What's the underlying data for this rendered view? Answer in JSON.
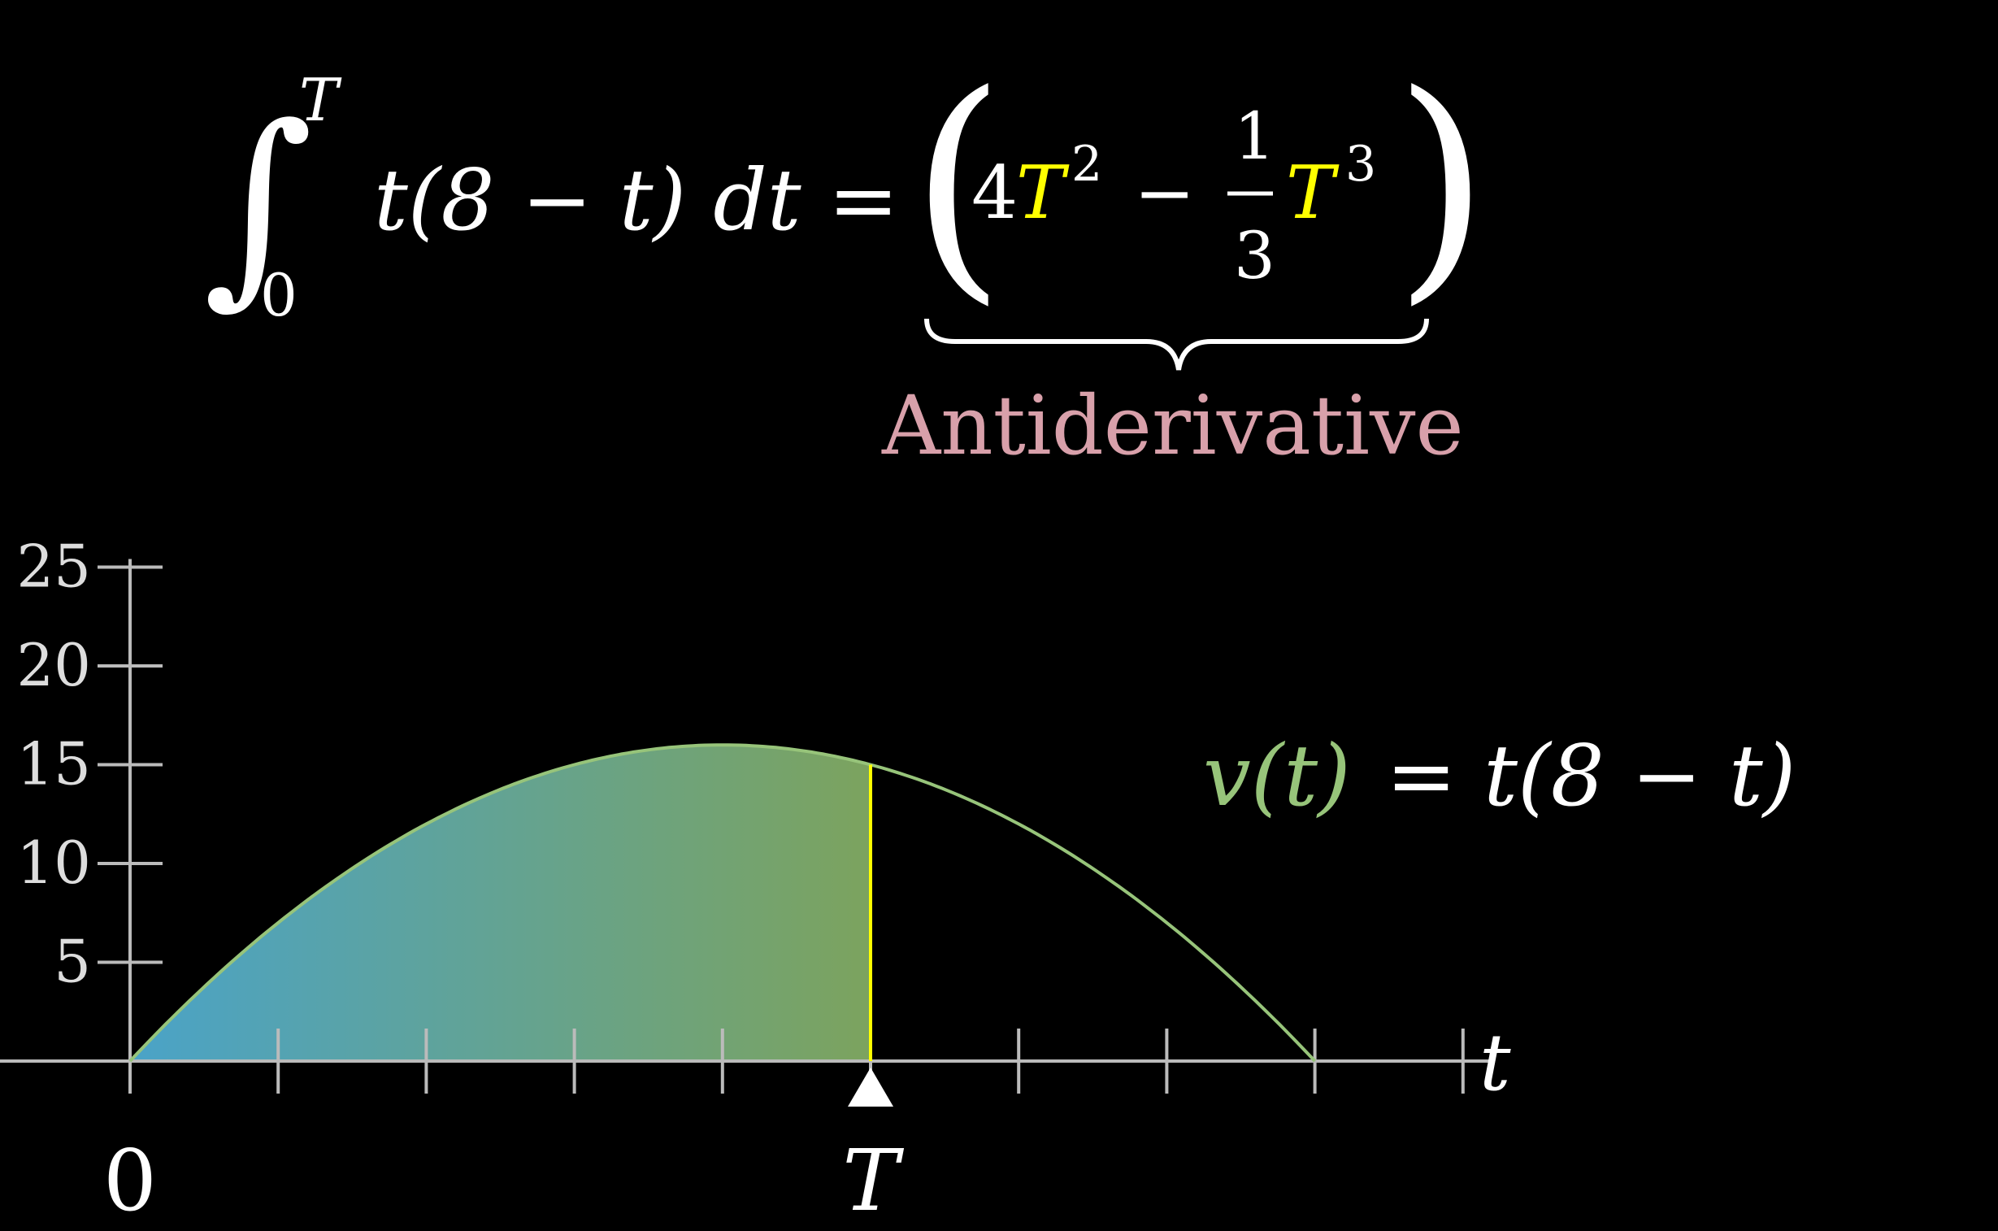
{
  "chart_data": {
    "type": "area",
    "function": "v(t) = t(8 - t)",
    "x_domain": [
      0,
      8
    ],
    "ylim": [
      0,
      25
    ],
    "y_ticks": [
      5,
      10,
      15,
      20,
      25
    ],
    "x_tick_values": [
      0,
      1,
      2,
      3,
      4,
      5,
      6,
      7,
      8,
      9
    ],
    "x_tick_labels": [
      {
        "value": 0,
        "label": "0"
      },
      {
        "value": 5,
        "label": "T"
      }
    ],
    "x_axis_label": "t",
    "T": 5,
    "shaded_interval": [
      0,
      5
    ],
    "curve_color": "#97c47a",
    "shade_gradient": [
      "#4aa3c8",
      "#7ca35e"
    ],
    "T_line_color": "#ffff00",
    "antiderivative_label": "Antiderivative",
    "antiderivative_color": "#d8a0aa",
    "formula": {
      "integral_upper": "T",
      "integral_lower": "0",
      "integrand": "t(8 − t) dt =",
      "rhs_coef1": "4",
      "rhs_var1": "T",
      "rhs_exp1": "2",
      "rhs_minus": "−",
      "frac_num": "1",
      "frac_den": "3",
      "rhs_var2": "T",
      "rhs_exp2": "3"
    },
    "curve_label": {
      "lhs": "v(t)",
      "rhs": "= t(8 − t)"
    }
  }
}
